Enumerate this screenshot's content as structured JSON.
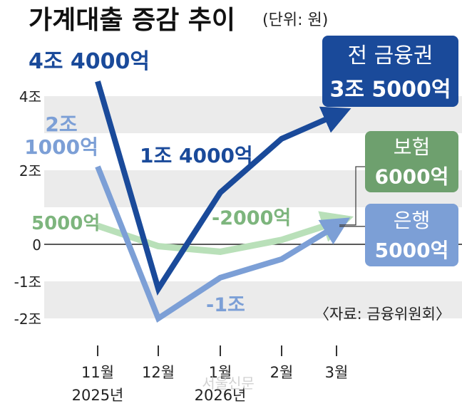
{
  "chart_data": {
    "type": "line",
    "title": "가계대출 증감 추이",
    "unit_note": "(단위: 원)",
    "source": "〈자료: 금융위원회〉",
    "watermark": "서울신문",
    "x_ticks": [
      {
        "top": "11월",
        "bottom": "2025년"
      },
      {
        "top": "12월",
        "bottom": ""
      },
      {
        "top": "1월",
        "bottom": "2026년"
      },
      {
        "top": "2월",
        "bottom": ""
      },
      {
        "top": "3월",
        "bottom": ""
      }
    ],
    "y_ticks": [
      {
        "value": 4,
        "label": "4조"
      },
      {
        "value": 2,
        "label": "2조"
      },
      {
        "value": 0,
        "label": "0"
      },
      {
        "value": -1,
        "label": "-1조"
      },
      {
        "value": -2,
        "label": "-2조"
      }
    ],
    "ylim": [
      -2,
      4
    ],
    "grid": "alternating horizontal bands",
    "series": [
      {
        "key": "total",
        "name": "전 금융권",
        "color": "#1a4a9a",
        "x": [
          0,
          1,
          2,
          3,
          4
        ],
        "values": [
          4.4,
          -1.2,
          1.4,
          2.85,
          3.5
        ]
      },
      {
        "key": "bank",
        "name": "은행",
        "color": "#7c9fd6",
        "x": [
          0,
          1,
          2,
          3,
          4
        ],
        "values": [
          2.1,
          -2.0,
          -0.9,
          -0.4,
          0.5
        ]
      },
      {
        "key": "insurance",
        "name": "보험",
        "color": "#a6d4a6",
        "x": [
          0,
          1,
          2,
          3,
          4
        ],
        "values": [
          0.5,
          -0.05,
          -0.2,
          0.12,
          0.6
        ]
      }
    ],
    "annotations": [
      {
        "key": "total_nov",
        "lines": [
          "4조 4000억"
        ],
        "color": "#1a4a9a"
      },
      {
        "key": "bank_nov",
        "lines": [
          "2조",
          "1000억"
        ],
        "color": "#7c9fd6"
      },
      {
        "key": "ins_nov",
        "lines": [
          "5000억"
        ],
        "color": "#7db57d"
      },
      {
        "key": "total_jan",
        "lines": [
          "1조 4000억"
        ],
        "color": "#1a4a9a"
      },
      {
        "key": "ins_jan",
        "lines": [
          "-2000억"
        ],
        "color": "#7db57d"
      },
      {
        "key": "bank_jan",
        "lines": [
          "-1조"
        ],
        "color": "#7c9fd6"
      }
    ],
    "legend_boxes": [
      {
        "key": "total",
        "lines": [
          "전 금융권",
          "3조 5000억"
        ],
        "color": "#1a4a9a"
      },
      {
        "key": "insurance",
        "lines": [
          "보험",
          "6000억"
        ],
        "color": "#6ea06e"
      },
      {
        "key": "bank",
        "lines": [
          "은행",
          "5000억"
        ],
        "color": "#7c9fd6"
      }
    ]
  }
}
